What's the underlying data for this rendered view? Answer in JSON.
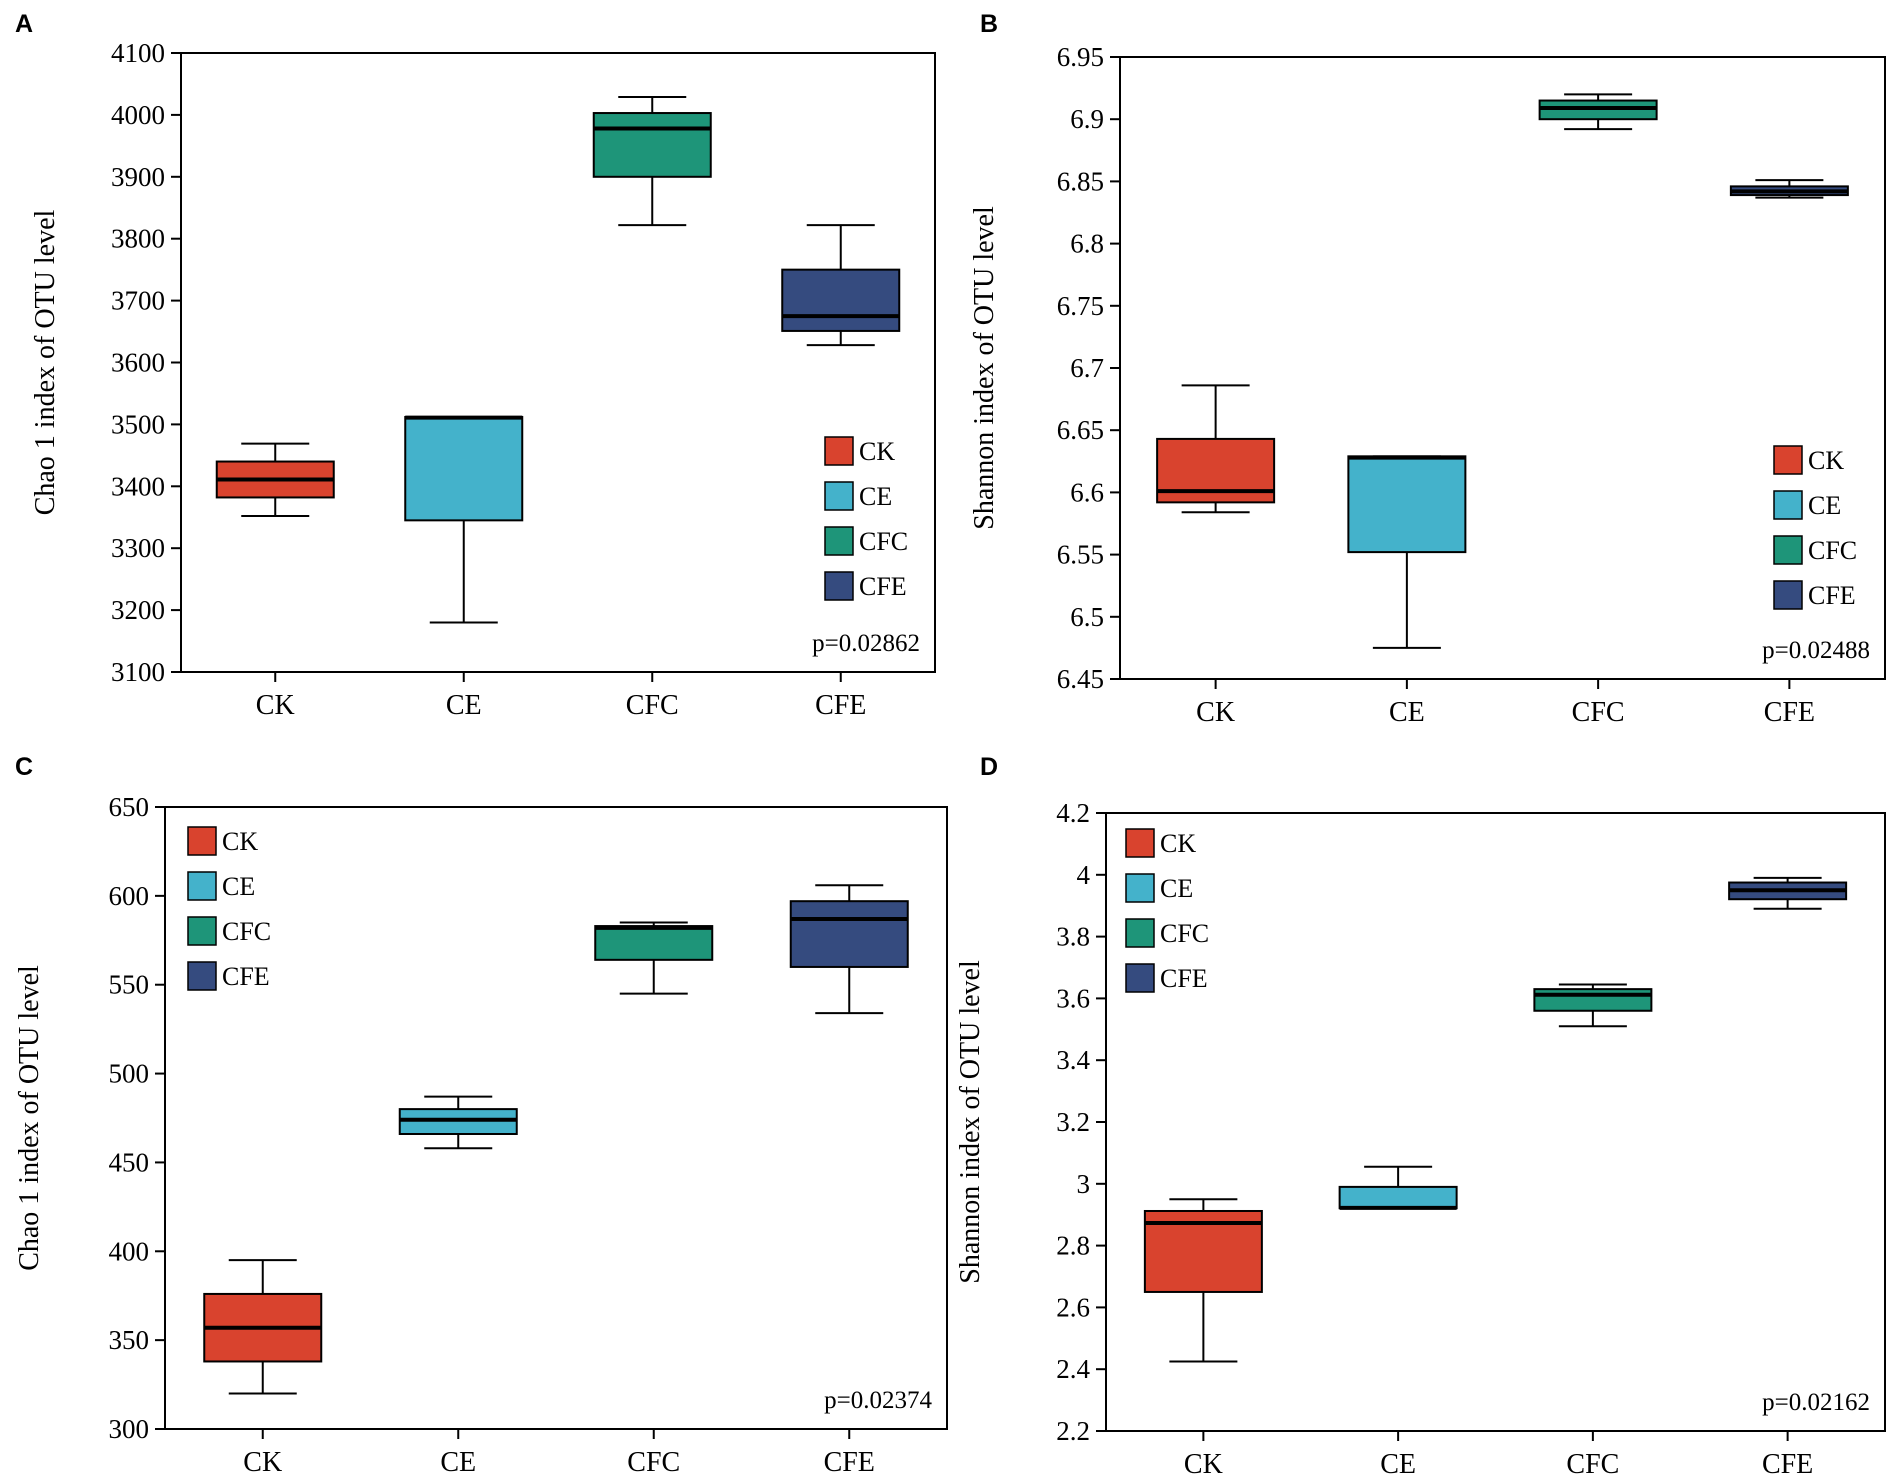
{
  "colors": {
    "CK": "#d9432e",
    "CE": "#44b2cb",
    "CFC": "#1e9579",
    "CFE": "#354b7f",
    "axis": "#000000",
    "median": "#000000"
  },
  "chart_data": [
    {
      "panel": "A",
      "type": "box",
      "ylabel": "Chao 1 index of OTU level",
      "ylim": [
        3100,
        4100
      ],
      "yticks": [
        3100,
        3200,
        3300,
        3400,
        3500,
        3600,
        3700,
        3800,
        3900,
        4000,
        4100
      ],
      "yticks_labels": [
        "3100",
        "3200",
        "3300",
        "3400",
        "3500",
        "3600",
        "3700",
        "3800",
        "3900",
        "4000",
        "4100"
      ],
      "categories": [
        "CK",
        "CE",
        "CFC",
        "CFE"
      ],
      "boxes": [
        {
          "name": "CK",
          "whisker_low": 3352,
          "q1": 3382,
          "median": 3411,
          "q3": 3440,
          "whisker_high": 3469
        },
        {
          "name": "CE",
          "whisker_low": 3180,
          "q1": 3345,
          "median": 3511,
          "q3": 3512,
          "whisker_high": 3512
        },
        {
          "name": "CFC",
          "whisker_low": 3822,
          "q1": 3900,
          "median": 3978,
          "q3": 4003,
          "whisker_high": 4029
        },
        {
          "name": "CFE",
          "whisker_low": 3628,
          "q1": 3651,
          "median": 3675,
          "q3": 3750,
          "whisker_high": 3822
        }
      ],
      "legend": [
        "CK",
        "CE",
        "CFC",
        "CFE"
      ],
      "legend_position": "bottom-right",
      "pvalue": "p=0.02862"
    },
    {
      "panel": "B",
      "type": "box",
      "ylabel": "Shannon index of OTU level",
      "ylim": [
        6.45,
        6.95
      ],
      "yticks": [
        6.45,
        6.5,
        6.55,
        6.6,
        6.65,
        6.7,
        6.75,
        6.8,
        6.85,
        6.9,
        6.95
      ],
      "yticks_labels": [
        "6.45",
        "6.5",
        "6.55",
        "6.6",
        "6.65",
        "6.7",
        "6.75",
        "6.8",
        "6.85",
        "6.9",
        "6.95"
      ],
      "categories": [
        "CK",
        "CE",
        "CFC",
        "CFE"
      ],
      "boxes": [
        {
          "name": "CK",
          "whisker_low": 6.584,
          "q1": 6.592,
          "median": 6.601,
          "q3": 6.643,
          "whisker_high": 6.686
        },
        {
          "name": "CE",
          "whisker_low": 6.475,
          "q1": 6.552,
          "median": 6.628,
          "q3": 6.629,
          "whisker_high": 6.629
        },
        {
          "name": "CFC",
          "whisker_low": 6.892,
          "q1": 6.9,
          "median": 6.909,
          "q3": 6.915,
          "whisker_high": 6.92
        },
        {
          "name": "CFE",
          "whisker_low": 6.837,
          "q1": 6.839,
          "median": 6.842,
          "q3": 6.846,
          "whisker_high": 6.851
        }
      ],
      "legend": [
        "CK",
        "CE",
        "CFC",
        "CFE"
      ],
      "legend_position": "bottom-right",
      "pvalue": "p=0.02488"
    },
    {
      "panel": "C",
      "type": "box",
      "ylabel": "Chao 1 index of OTU level",
      "ylim": [
        300,
        650
      ],
      "yticks": [
        300,
        350,
        400,
        450,
        500,
        550,
        600,
        650
      ],
      "yticks_labels": [
        "300",
        "350",
        "400",
        "450",
        "500",
        "550",
        "600",
        "650"
      ],
      "categories": [
        "CK",
        "CE",
        "CFC",
        "CFE"
      ],
      "boxes": [
        {
          "name": "CK",
          "whisker_low": 320,
          "q1": 338,
          "median": 357,
          "q3": 376,
          "whisker_high": 395
        },
        {
          "name": "CE",
          "whisker_low": 458,
          "q1": 466,
          "median": 474,
          "q3": 480,
          "whisker_high": 487
        },
        {
          "name": "CFC",
          "whisker_low": 545,
          "q1": 564,
          "median": 582,
          "q3": 583,
          "whisker_high": 585
        },
        {
          "name": "CFE",
          "whisker_low": 534,
          "q1": 560,
          "median": 587,
          "q3": 597,
          "whisker_high": 606
        }
      ],
      "legend": [
        "CK",
        "CE",
        "CFC",
        "CFE"
      ],
      "legend_position": "top-left",
      "pvalue": "p=0.02374"
    },
    {
      "panel": "D",
      "type": "box",
      "ylabel": "Shannon index of OTU level",
      "ylim": [
        2.2,
        4.2
      ],
      "yticks": [
        2.2,
        2.4,
        2.6,
        2.8,
        3.0,
        3.2,
        3.4,
        3.6,
        3.8,
        4.0,
        4.2
      ],
      "yticks_labels": [
        "2.2",
        "2.4",
        "2.6",
        "2.8",
        "3",
        "3.2",
        "3.4",
        "3.6",
        "3.8",
        "4",
        "4.2"
      ],
      "categories": [
        "CK",
        "CE",
        "CFC",
        "CFE"
      ],
      "boxes": [
        {
          "name": "CK",
          "whisker_low": 2.425,
          "q1": 2.65,
          "median": 2.873,
          "q3": 2.912,
          "whisker_high": 2.95
        },
        {
          "name": "CE",
          "whisker_low": 2.92,
          "q1": 2.921,
          "median": 2.922,
          "q3": 2.99,
          "whisker_high": 3.055
        },
        {
          "name": "CFC",
          "whisker_low": 3.51,
          "q1": 3.56,
          "median": 3.612,
          "q3": 3.63,
          "whisker_high": 3.645
        },
        {
          "name": "CFE",
          "whisker_low": 3.89,
          "q1": 3.921,
          "median": 3.95,
          "q3": 3.975,
          "whisker_high": 3.99
        }
      ],
      "legend": [
        "CK",
        "CE",
        "CFC",
        "CFE"
      ],
      "legend_position": "top-left",
      "pvalue": "p=0.02162"
    }
  ]
}
